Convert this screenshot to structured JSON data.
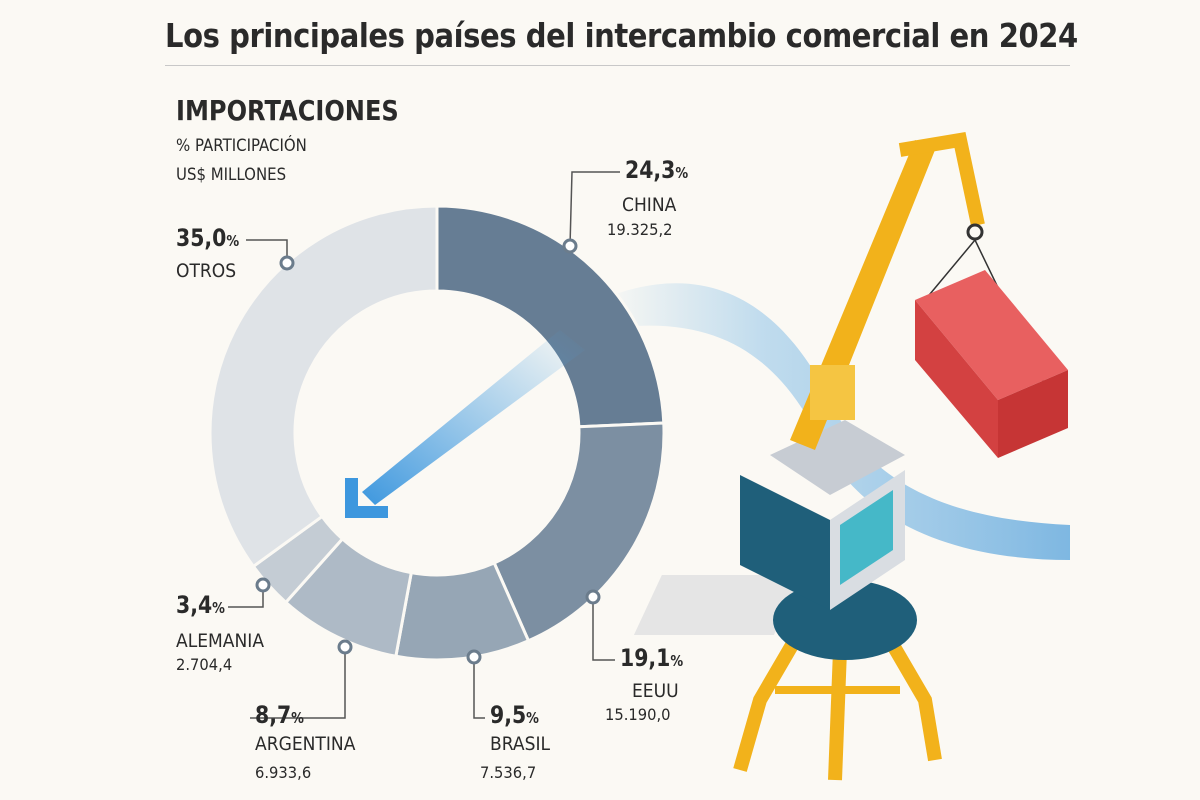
{
  "page": {
    "title": "Los principales países del intercambio comercial en 2024",
    "subtitle": "IMPORTACIONES",
    "note_share": "% PARTICIPACIÓN",
    "note_units": "US$ MILLONES"
  },
  "chart_data": {
    "type": "pie",
    "title": "IMPORTACIONES",
    "percent_symbol": "%",
    "slices": [
      {
        "country": "CHINA",
        "percent": 24.3,
        "percent_label": "24,3",
        "value": 19325.2,
        "value_label": "19.325,2",
        "color": "#667d94"
      },
      {
        "country": "EEUU",
        "percent": 19.1,
        "percent_label": "19,1",
        "value": 15190.0,
        "value_label": "15.190,0",
        "color": "#7c8fa2"
      },
      {
        "country": "BRASIL",
        "percent": 9.5,
        "percent_label": "9,5",
        "value": 7536.7,
        "value_label": "7.536,7",
        "color": "#96a6b5"
      },
      {
        "country": "ARGENTINA",
        "percent": 8.7,
        "percent_label": "8,7",
        "value": 6933.6,
        "value_label": "6.933,6",
        "color": "#aebac6"
      },
      {
        "country": "ALEMANIA",
        "percent": 3.4,
        "percent_label": "3,4",
        "value": 2704.4,
        "value_label": "2.704,4",
        "color": "#c4ccd4"
      },
      {
        "country": "OTROS",
        "percent": 35.0,
        "percent_label": "35,0",
        "value": null,
        "value_label": "",
        "color": "#dfe3e7"
      }
    ]
  }
}
